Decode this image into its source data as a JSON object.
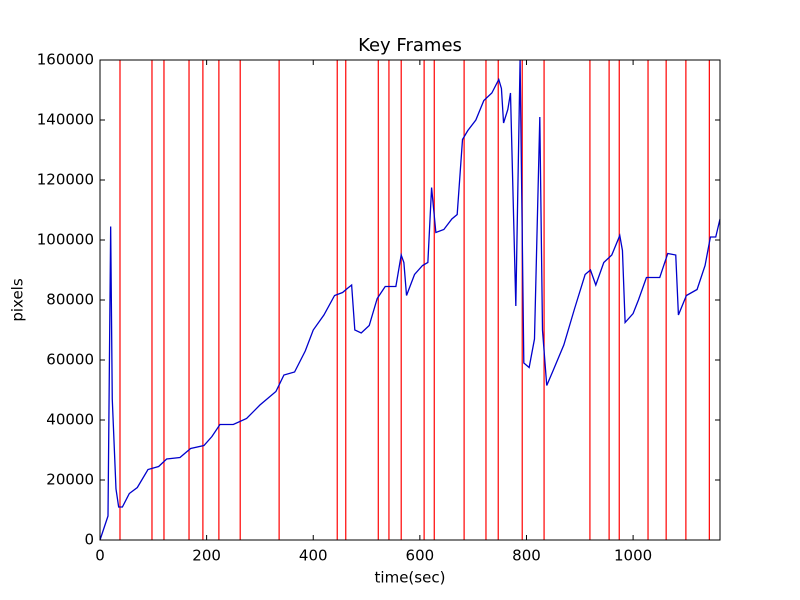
{
  "chart_data": {
    "type": "line",
    "title": "Key Frames",
    "xlabel": "time(sec)",
    "ylabel": "pixels",
    "xlim": [
      0,
      1163
    ],
    "ylim": [
      0,
      160000
    ],
    "xticks": [
      0,
      200,
      400,
      600,
      800,
      1000
    ],
    "yticks": [
      0,
      20000,
      40000,
      60000,
      80000,
      100000,
      120000,
      140000,
      160000
    ],
    "grid": false,
    "color": "#0000cc",
    "x": [
      0,
      15,
      20,
      23,
      30,
      35,
      42,
      55,
      70,
      90,
      110,
      125,
      150,
      170,
      195,
      210,
      225,
      250,
      275,
      300,
      330,
      345,
      365,
      385,
      400,
      420,
      440,
      455,
      465,
      472,
      478,
      490,
      505,
      520,
      535,
      555,
      565,
      570,
      575,
      590,
      605,
      615,
      622,
      630,
      645,
      660,
      670,
      680,
      690,
      705,
      720,
      735,
      748,
      753,
      757,
      765,
      770,
      780,
      788,
      795,
      805,
      815,
      825,
      830,
      838,
      850,
      870,
      890,
      910,
      920,
      930,
      945,
      960,
      975,
      980,
      985,
      1000,
      1010,
      1025,
      1050,
      1065,
      1080,
      1085,
      1100,
      1120,
      1135,
      1145,
      1155,
      1163
    ],
    "values": [
      0,
      8000,
      104500,
      47000,
      17000,
      11000,
      11000,
      15500,
      17500,
      23500,
      24500,
      27000,
      27500,
      30500,
      31500,
      34500,
      38500,
      38500,
      40500,
      45000,
      49500,
      55000,
      56000,
      63000,
      70000,
      75000,
      81500,
      82500,
      84000,
      85000,
      70000,
      69000,
      71500,
      80500,
      84500,
      84500,
      95000,
      92500,
      81500,
      88500,
      91500,
      92500,
      117500,
      102500,
      103500,
      107000,
      108500,
      133500,
      136500,
      140000,
      146500,
      149000,
      153500,
      150500,
      139000,
      143500,
      149000,
      78000,
      160000,
      59000,
      57500,
      67000,
      141000,
      70000,
      51500,
      56500,
      65000,
      77000,
      88500,
      90000,
      85000,
      92500,
      95000,
      101500,
      96500,
      72500,
      75500,
      80000,
      87500,
      87500,
      95500,
      95000,
      75000,
      81500,
      83500,
      91500,
      101000,
      101000,
      107000
    ],
    "key_frames": {
      "color": "#ff0000",
      "x": [
        37.5,
        97.5,
        120,
        167,
        193,
        223,
        263,
        336,
        445,
        461,
        522,
        542,
        565,
        608,
        627,
        683,
        724,
        747,
        792,
        833,
        919,
        955,
        974,
        1028,
        1062,
        1099,
        1143
      ]
    }
  }
}
